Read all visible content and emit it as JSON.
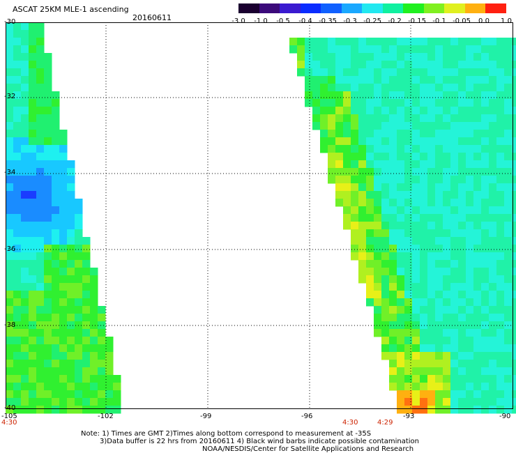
{
  "header": {
    "title": "ASCAT 25KM MLE-1 ascending",
    "date": "20160611"
  },
  "colorbar": {
    "labels": [
      "-3.0",
      "-1.0",
      "-0.5",
      "-0.4",
      "-0.35",
      "-0.3",
      "-0.25",
      "-0.2",
      "-0.15",
      "-0.1",
      "-0.05",
      "0.0",
      "1.0"
    ],
    "colors": [
      "#1a0030",
      "#3b0a7a",
      "#3a1ad0",
      "#0a2cff",
      "#1060ff",
      "#1aa8ff",
      "#22e8f0",
      "#10f0a0",
      "#20f020",
      "#80f020",
      "#e0f020",
      "#ffb010",
      "#ff2010"
    ]
  },
  "axes": {
    "x_ticks": [
      "-105",
      "-102",
      "-99",
      "-96",
      "-93",
      "-90"
    ],
    "y_ticks": [
      "-30",
      "-32",
      "-34",
      "-36",
      "-38",
      "-40"
    ],
    "time_labels": [
      "4:30",
      "4:30",
      "4:29"
    ]
  },
  "notes": {
    "line1": "Note: 1) Times are GMT 2)Times along bottom correspond to measurement at -35S",
    "line2": "3)Data buffer is 22 hrs from 20160611 4) Black wind barbs indicate possible contamination",
    "line3": "NOAA/NESDIS/Center for Satellite Applications and Research"
  },
  "map": {
    "lon_range": [
      -105,
      -90
    ],
    "lat_range": [
      -40,
      -30
    ],
    "grid": true
  }
}
